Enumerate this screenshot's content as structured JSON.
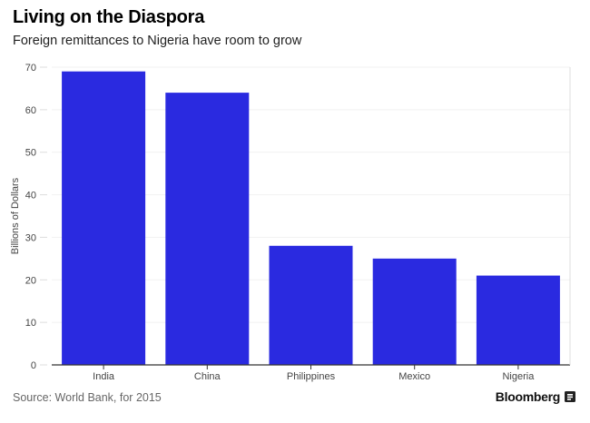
{
  "header": {
    "title": "Living on the Diaspora",
    "subtitle": "Foreign remittances to Nigeria have room to grow"
  },
  "footer": {
    "source": "Source: World Bank, for 2015",
    "brand": "Bloomberg",
    "brand_icon": "bloomberg-logo-icon"
  },
  "colors": {
    "bar": "#2a2ae0",
    "axis": "#333333",
    "grid": "#f1f1f1",
    "tick_text": "#444444"
  },
  "chart_data": {
    "type": "bar",
    "title": "Living on the Diaspora",
    "subtitle": "Foreign remittances to Nigeria have room to grow",
    "categories": [
      "India",
      "China",
      "Philippines",
      "Mexico",
      "Nigeria"
    ],
    "values": [
      69,
      64,
      28,
      25,
      21
    ],
    "xlabel": "",
    "ylabel": "Billions of Dollars",
    "ylim": [
      0,
      70
    ],
    "yticks": [
      0,
      10,
      20,
      30,
      40,
      50,
      60,
      70
    ],
    "grid": true,
    "legend": "none"
  }
}
